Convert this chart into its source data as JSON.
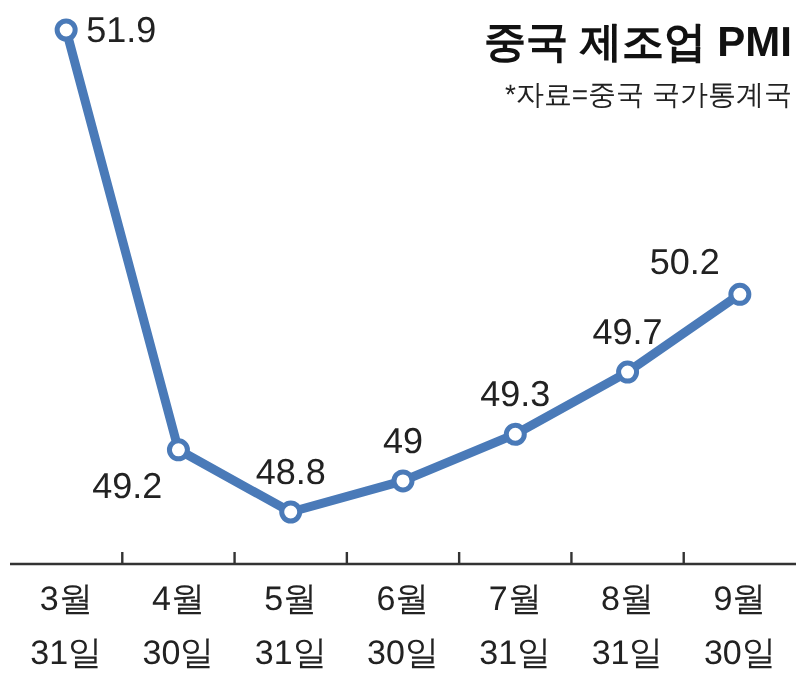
{
  "chart_data": {
    "type": "line",
    "title": "중국 제조업 PMI",
    "annotations": [
      "*자료=중국 국가통계국"
    ],
    "categories": [
      "3월\n31일",
      "4월\n30일",
      "5월\n31일",
      "6월\n30일",
      "7월\n31일",
      "8월\n31일",
      "9월\n30일"
    ],
    "series": [
      {
        "color": "#4a7ab8",
        "values": [
          51.9,
          49.2,
          48.8,
          49,
          49.3,
          49.7,
          50.2
        ]
      }
    ],
    "data_labels": true,
    "marker": "circle",
    "line_style": "solid"
  }
}
